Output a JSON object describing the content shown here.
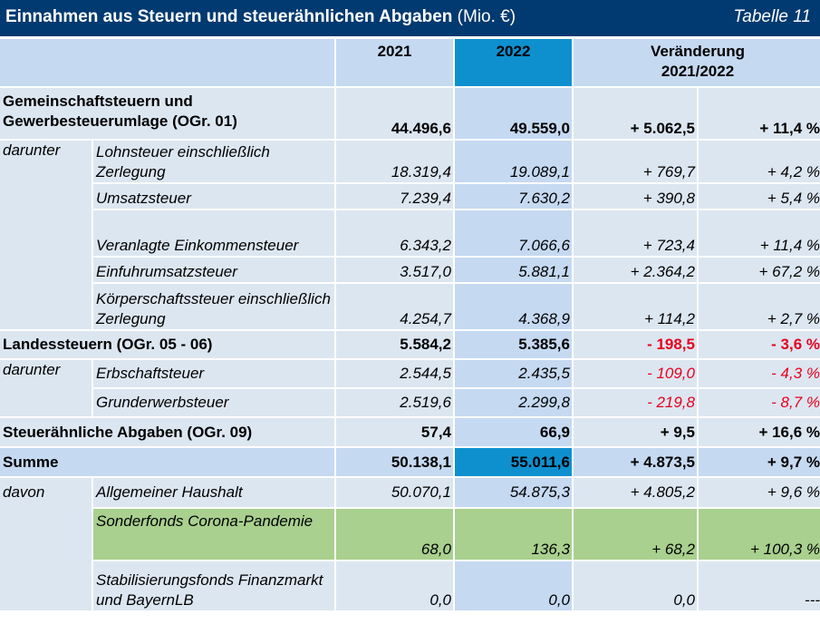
{
  "title": {
    "main": "Einnahmen aus Steuern und steuerähnlichen Abgaben",
    "unit": "(Mio. €)",
    "table_no": "Tabelle 11"
  },
  "header": {
    "y2021": "2021",
    "y2022": "2022",
    "change_line1": "Veränderung",
    "change_line2": "2021/2022"
  },
  "rows": {
    "gemein": {
      "label": "Gemeinschaftsteuern und Gewerbesteuerumlage (OGr. 01)",
      "v2021": "44.496,6",
      "v2022": "49.559,0",
      "abs": "+ 5.062,5",
      "pct": "+ 11,4 %"
    },
    "darunter1": "darunter",
    "lohn": {
      "label": "Lohnsteuer einschließlich Zerlegung",
      "v2021": "18.319,4",
      "v2022": "19.089,1",
      "abs": "+ 769,7",
      "pct": "+ 4,2 %"
    },
    "umsatz": {
      "label": "Umsatzsteuer",
      "v2021": "7.239,4",
      "v2022": "7.630,2",
      "abs": "+ 390,8",
      "pct": "+ 5,4 %"
    },
    "einkommen": {
      "label": "Veranlagte Einkommensteuer",
      "v2021": "6.343,2",
      "v2022": "7.066,6",
      "abs": "+ 723,4",
      "pct": "+ 11,4 %"
    },
    "einfuhr": {
      "label": "Einfuhrumsatzsteuer",
      "v2021": "3.517,0",
      "v2022": "5.881,1",
      "abs": "+ 2.364,2",
      "pct": "+ 67,2 %"
    },
    "koerper": {
      "label": "Körperschaftssteuer einschließlich Zerlegung",
      "v2021": "4.254,7",
      "v2022": "4.368,9",
      "abs": "+ 114,2",
      "pct": "+ 2,7 %"
    },
    "landes": {
      "label": "Landessteuern (OGr. 05 - 06)",
      "v2021": "5.584,2",
      "v2022": "5.385,6",
      "abs": "- 198,5",
      "pct": "- 3,6 %"
    },
    "darunter2": "darunter",
    "erbschaft": {
      "label": "Erbschaftsteuer",
      "v2021": "2.544,5",
      "v2022": "2.435,5",
      "abs": "- 109,0",
      "pct": "- 4,3 %"
    },
    "grunderwerb": {
      "label": "Grunderwerbsteuer",
      "v2021": "2.519,6",
      "v2022": "2.299,8",
      "abs": "- 219,8",
      "pct": "- 8,7 %"
    },
    "steuerähnlich": {
      "label": "Steuerähnliche Abgaben (OGr. 09)",
      "v2021": "57,4",
      "v2022": "66,9",
      "abs": "+ 9,5",
      "pct": "+ 16,6 %"
    },
    "summe": {
      "label": "Summe",
      "v2021": "50.138,1",
      "v2022": "55.011,6",
      "abs": "+ 4.873,5",
      "pct": "+ 9,7 %"
    },
    "davon": "davon",
    "allgemein": {
      "label": "Allgemeiner Haushalt",
      "v2021": "50.070,1",
      "v2022": "54.875,3",
      "abs": "+ 4.805,2",
      "pct": "+ 9,6 %"
    },
    "sonder": {
      "label": "Sonderfonds Corona-Pandemie",
      "v2021": "68,0",
      "v2022": "136,3",
      "abs": "+ 68,2",
      "pct": "+ 100,3 %"
    },
    "stabil": {
      "label": "Stabilisierungsfonds Finanzmarkt und BayernLB",
      "v2021": "0,0",
      "v2022": "0,0",
      "abs": "0,0",
      "pct": "---"
    }
  },
  "colors": {
    "title_bg": "#003a70",
    "cell_bg": "#dce6f1",
    "header_bg": "#c5d9f1",
    "highlight": "#0e90cf",
    "green": "#a9d08e",
    "negative": "#e8001c"
  }
}
